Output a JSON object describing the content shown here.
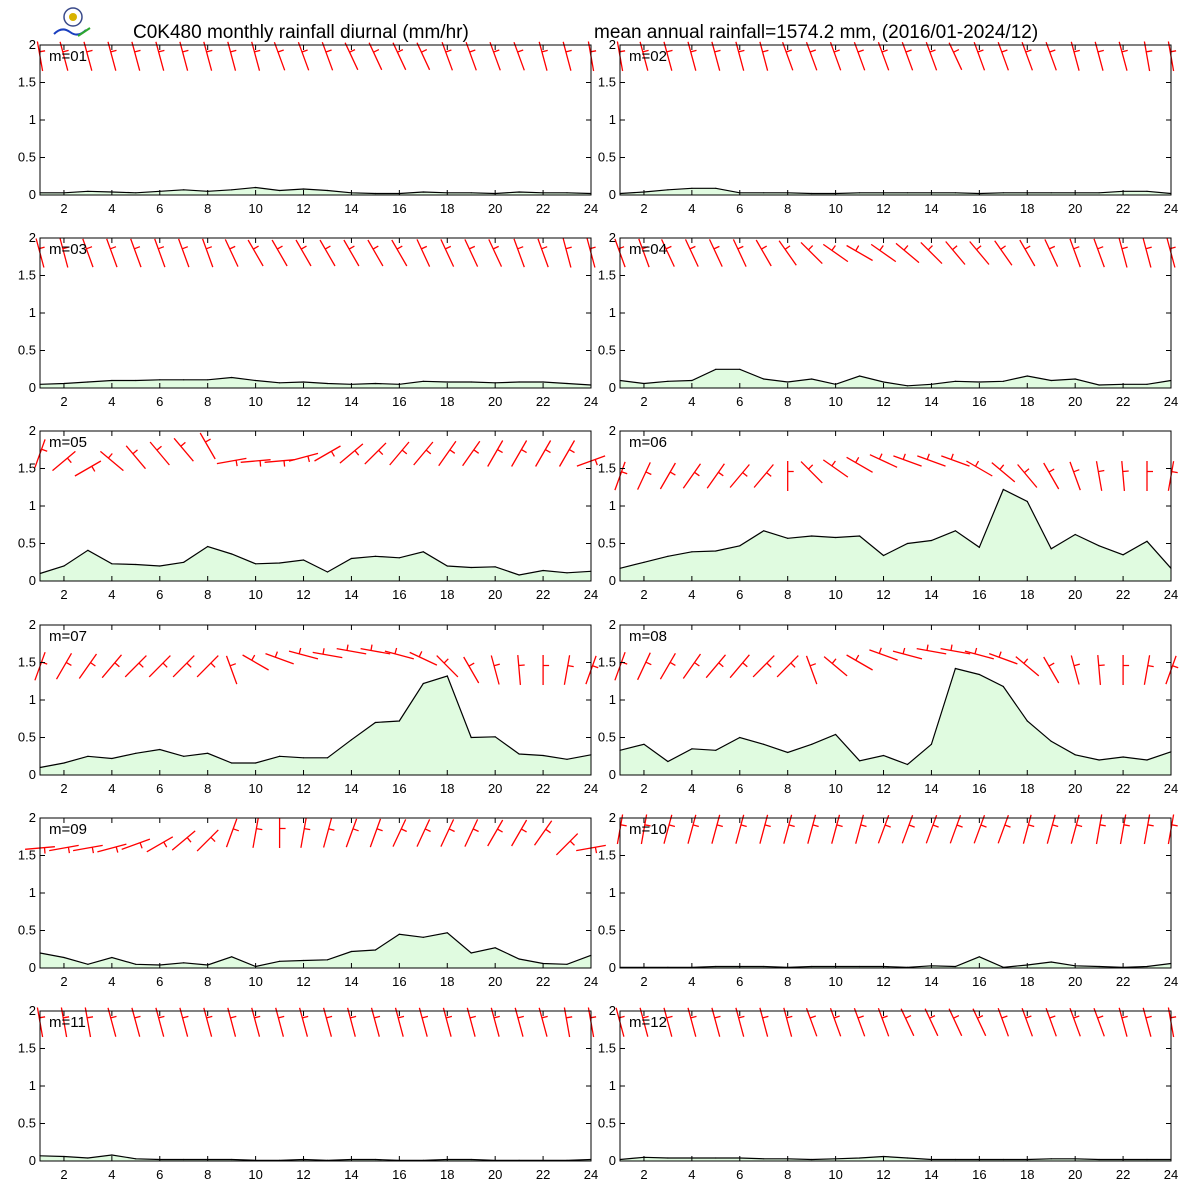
{
  "header": {
    "title_left": "C0K480 monthly rainfall diurnal (mm/hr)",
    "title_right": "mean annual rainfall=1574.2 mm, (2016/01-2024/12)"
  },
  "colors": {
    "area_fill": "#e0fbe0",
    "line": "#000000",
    "barb": "#ff0000"
  },
  "chart_data": {
    "type": "area",
    "xlabel": "",
    "ylabel": "",
    "x": [
      1,
      2,
      3,
      4,
      5,
      6,
      7,
      8,
      9,
      10,
      11,
      12,
      13,
      14,
      15,
      16,
      17,
      18,
      19,
      20,
      21,
      22,
      23,
      24
    ],
    "xticks": [
      2,
      4,
      6,
      8,
      10,
      12,
      14,
      16,
      18,
      20,
      22,
      24
    ],
    "ylim": [
      0,
      2
    ],
    "yticks": [
      0,
      0.5,
      1,
      1.5,
      2
    ],
    "ytick_labels": [
      "0",
      "0.5",
      "1",
      "1.5",
      "2"
    ],
    "grid": false,
    "panels": [
      {
        "label": "m=01",
        "values": [
          0.03,
          0.03,
          0.05,
          0.04,
          0.03,
          0.05,
          0.07,
          0.05,
          0.07,
          0.1,
          0.06,
          0.08,
          0.06,
          0.03,
          0.02,
          0.02,
          0.04,
          0.03,
          0.03,
          0.02,
          0.04,
          0.03,
          0.03,
          0.02
        ],
        "wind_dir": [
          10,
          15,
          15,
          15,
          15,
          15,
          15,
          15,
          15,
          15,
          20,
          20,
          20,
          25,
          25,
          25,
          25,
          20,
          20,
          20,
          20,
          15,
          15,
          10
        ],
        "wind_y": [
          1.85,
          1.85,
          1.85,
          1.85,
          1.85,
          1.85,
          1.85,
          1.85,
          1.85,
          1.85,
          1.85,
          1.85,
          1.85,
          1.85,
          1.85,
          1.85,
          1.85,
          1.85,
          1.85,
          1.85,
          1.85,
          1.85,
          1.85,
          1.85
        ]
      },
      {
        "label": "m=02",
        "values": [
          0.02,
          0.04,
          0.07,
          0.09,
          0.09,
          0.03,
          0.03,
          0.03,
          0.02,
          0.02,
          0.03,
          0.03,
          0.03,
          0.03,
          0.03,
          0.02,
          0.03,
          0.03,
          0.03,
          0.03,
          0.03,
          0.05,
          0.05,
          0.02
        ],
        "wind_dir": [
          10,
          15,
          15,
          15,
          15,
          15,
          15,
          20,
          20,
          20,
          20,
          20,
          20,
          20,
          25,
          20,
          20,
          20,
          20,
          15,
          15,
          15,
          10,
          10
        ],
        "wind_y": [
          1.85,
          1.85,
          1.85,
          1.85,
          1.85,
          1.85,
          1.85,
          1.85,
          1.85,
          1.85,
          1.85,
          1.85,
          1.85,
          1.85,
          1.85,
          1.85,
          1.85,
          1.85,
          1.85,
          1.85,
          1.85,
          1.85,
          1.85,
          1.85
        ]
      },
      {
        "label": "m=03",
        "values": [
          0.05,
          0.06,
          0.08,
          0.1,
          0.1,
          0.11,
          0.11,
          0.11,
          0.14,
          0.1,
          0.07,
          0.08,
          0.06,
          0.05,
          0.06,
          0.05,
          0.09,
          0.08,
          0.08,
          0.07,
          0.08,
          0.08,
          0.06,
          0.04
        ],
        "wind_dir": [
          15,
          15,
          20,
          20,
          20,
          20,
          20,
          20,
          25,
          30,
          30,
          30,
          30,
          30,
          30,
          30,
          25,
          25,
          25,
          25,
          20,
          20,
          15,
          15
        ],
        "wind_y": [
          1.8,
          1.8,
          1.8,
          1.8,
          1.8,
          1.8,
          1.8,
          1.8,
          1.8,
          1.8,
          1.8,
          1.8,
          1.8,
          1.8,
          1.8,
          1.8,
          1.8,
          1.8,
          1.8,
          1.8,
          1.8,
          1.8,
          1.8,
          1.8
        ]
      },
      {
        "label": "m=04",
        "values": [
          0.1,
          0.06,
          0.09,
          0.1,
          0.25,
          0.25,
          0.12,
          0.08,
          0.12,
          0.05,
          0.16,
          0.08,
          0.03,
          0.05,
          0.09,
          0.08,
          0.09,
          0.16,
          0.1,
          0.12,
          0.04,
          0.05,
          0.05,
          0.1
        ],
        "wind_dir": [
          20,
          20,
          25,
          25,
          25,
          25,
          30,
          35,
          45,
          55,
          60,
          55,
          50,
          45,
          40,
          40,
          35,
          30,
          25,
          20,
          20,
          15,
          15,
          15
        ],
        "wind_y": [
          1.8,
          1.8,
          1.8,
          1.8,
          1.8,
          1.8,
          1.8,
          1.8,
          1.8,
          1.8,
          1.8,
          1.8,
          1.8,
          1.8,
          1.8,
          1.8,
          1.8,
          1.8,
          1.8,
          1.8,
          1.8,
          1.8,
          1.8,
          1.8
        ]
      },
      {
        "label": "m=05",
        "values": [
          0.1,
          0.2,
          0.41,
          0.23,
          0.22,
          0.2,
          0.25,
          0.46,
          0.36,
          0.23,
          0.24,
          0.28,
          0.12,
          0.3,
          0.33,
          0.31,
          0.39,
          0.2,
          0.18,
          0.19,
          0.08,
          0.14,
          0.11,
          0.13
        ],
        "wind_dir": [
          -20,
          -50,
          -60,
          50,
          40,
          40,
          40,
          30,
          -80,
          -85,
          -85,
          -75,
          -60,
          -50,
          -45,
          -40,
          -40,
          -35,
          -35,
          -30,
          -30,
          -30,
          -30,
          -70
        ],
        "wind_y": [
          1.7,
          1.6,
          1.5,
          1.6,
          1.65,
          1.7,
          1.75,
          1.8,
          1.6,
          1.6,
          1.6,
          1.65,
          1.7,
          1.7,
          1.7,
          1.7,
          1.7,
          1.7,
          1.7,
          1.7,
          1.7,
          1.7,
          1.7,
          1.6
        ]
      },
      {
        "label": "m=06",
        "values": [
          0.17,
          0.25,
          0.33,
          0.39,
          0.4,
          0.47,
          0.67,
          0.57,
          0.6,
          0.58,
          0.6,
          0.34,
          0.5,
          0.54,
          0.67,
          0.45,
          1.22,
          1.06,
          0.43,
          0.62,
          0.47,
          0.35,
          0.53,
          0.17
        ],
        "wind_dir": [
          -20,
          -25,
          -30,
          -35,
          -35,
          -40,
          -40,
          0,
          45,
          55,
          60,
          65,
          70,
          70,
          70,
          60,
          50,
          40,
          30,
          20,
          10,
          5,
          0,
          -10
        ],
        "wind_y": [
          1.4,
          1.4,
          1.4,
          1.4,
          1.4,
          1.4,
          1.4,
          1.4,
          1.45,
          1.5,
          1.55,
          1.6,
          1.6,
          1.6,
          1.6,
          1.5,
          1.45,
          1.4,
          1.4,
          1.4,
          1.4,
          1.4,
          1.4,
          1.4
        ]
      },
      {
        "label": "m=07",
        "values": [
          0.1,
          0.16,
          0.25,
          0.22,
          0.29,
          0.34,
          0.25,
          0.29,
          0.16,
          0.16,
          0.25,
          0.23,
          0.23,
          0.47,
          0.7,
          0.72,
          1.22,
          1.32,
          0.5,
          0.51,
          0.28,
          0.26,
          0.21,
          0.27
        ],
        "wind_dir": [
          -20,
          -30,
          -35,
          -40,
          -45,
          -45,
          -45,
          -45,
          20,
          60,
          70,
          75,
          80,
          80,
          80,
          75,
          65,
          45,
          30,
          15,
          5,
          0,
          -10,
          -20
        ],
        "wind_y": [
          1.45,
          1.45,
          1.45,
          1.45,
          1.45,
          1.45,
          1.45,
          1.45,
          1.4,
          1.5,
          1.55,
          1.6,
          1.6,
          1.65,
          1.65,
          1.6,
          1.55,
          1.45,
          1.4,
          1.4,
          1.4,
          1.4,
          1.4,
          1.4
        ]
      },
      {
        "label": "m=08",
        "values": [
          0.33,
          0.41,
          0.18,
          0.35,
          0.33,
          0.5,
          0.41,
          0.3,
          0.41,
          0.54,
          0.19,
          0.26,
          0.14,
          0.41,
          1.42,
          1.34,
          1.18,
          0.72,
          0.45,
          0.27,
          0.2,
          0.24,
          0.2,
          0.31
        ],
        "wind_dir": [
          -20,
          -25,
          -30,
          -35,
          -40,
          -40,
          -45,
          -45,
          20,
          50,
          60,
          70,
          75,
          80,
          80,
          75,
          70,
          50,
          30,
          15,
          5,
          0,
          -10,
          -20
        ],
        "wind_y": [
          1.45,
          1.45,
          1.45,
          1.45,
          1.45,
          1.45,
          1.45,
          1.45,
          1.4,
          1.45,
          1.5,
          1.6,
          1.6,
          1.65,
          1.65,
          1.6,
          1.55,
          1.45,
          1.4,
          1.4,
          1.4,
          1.4,
          1.4,
          1.4
        ]
      },
      {
        "label": "m=09",
        "values": [
          0.2,
          0.14,
          0.05,
          0.14,
          0.05,
          0.04,
          0.07,
          0.04,
          0.15,
          0.02,
          0.09,
          0.1,
          0.11,
          0.22,
          0.24,
          0.45,
          0.41,
          0.47,
          0.2,
          0.27,
          0.12,
          0.06,
          0.05,
          0.17
        ],
        "wind_dir": [
          -85,
          -80,
          -80,
          -75,
          -70,
          -60,
          -50,
          -45,
          -20,
          -10,
          0,
          -10,
          -15,
          -20,
          -20,
          -25,
          -25,
          -25,
          -25,
          -30,
          -30,
          -35,
          -45,
          -80
        ],
        "wind_y": [
          1.6,
          1.6,
          1.6,
          1.6,
          1.65,
          1.65,
          1.7,
          1.7,
          1.8,
          1.8,
          1.8,
          1.8,
          1.8,
          1.8,
          1.8,
          1.8,
          1.8,
          1.8,
          1.8,
          1.8,
          1.8,
          1.8,
          1.65,
          1.6
        ]
      },
      {
        "label": "m=10",
        "values": [
          0.01,
          0.01,
          0.01,
          0.01,
          0.02,
          0.02,
          0.02,
          0.01,
          0.02,
          0.02,
          0.02,
          0.02,
          0.01,
          0.03,
          0.02,
          0.15,
          0.01,
          0.04,
          0.08,
          0.03,
          0.02,
          0.01,
          0.02,
          0.06
        ],
        "wind_dir": [
          -10,
          -10,
          -15,
          -15,
          -15,
          -15,
          -15,
          -15,
          -15,
          -15,
          -15,
          -20,
          -20,
          -20,
          -20,
          -20,
          -20,
          -15,
          -15,
          -15,
          -10,
          -10,
          -10,
          -10
        ],
        "wind_y": [
          1.85,
          1.85,
          1.85,
          1.85,
          1.85,
          1.85,
          1.85,
          1.85,
          1.85,
          1.85,
          1.85,
          1.85,
          1.85,
          1.85,
          1.85,
          1.85,
          1.85,
          1.85,
          1.85,
          1.85,
          1.85,
          1.85,
          1.85,
          1.85
        ]
      },
      {
        "label": "m=11",
        "values": [
          0.07,
          0.06,
          0.04,
          0.08,
          0.03,
          0.02,
          0.02,
          0.02,
          0.02,
          0.01,
          0.01,
          0.02,
          0.01,
          0.02,
          0.02,
          0.01,
          0.01,
          0.02,
          0.02,
          0.01,
          0.01,
          0.01,
          0.01,
          0.02
        ],
        "wind_dir": [
          10,
          10,
          10,
          15,
          15,
          15,
          15,
          15,
          15,
          15,
          15,
          15,
          15,
          15,
          15,
          15,
          15,
          15,
          15,
          15,
          15,
          15,
          10,
          10
        ],
        "wind_y": [
          1.85,
          1.85,
          1.85,
          1.85,
          1.85,
          1.85,
          1.85,
          1.85,
          1.85,
          1.85,
          1.85,
          1.85,
          1.85,
          1.85,
          1.85,
          1.85,
          1.85,
          1.85,
          1.85,
          1.85,
          1.85,
          1.85,
          1.85,
          1.85
        ]
      },
      {
        "label": "m=12",
        "values": [
          0.02,
          0.05,
          0.04,
          0.04,
          0.04,
          0.04,
          0.03,
          0.03,
          0.02,
          0.03,
          0.04,
          0.06,
          0.04,
          0.02,
          0.02,
          0.02,
          0.02,
          0.02,
          0.03,
          0.03,
          0.02,
          0.02,
          0.02,
          0.02
        ],
        "wind_dir": [
          15,
          15,
          15,
          15,
          15,
          15,
          15,
          15,
          20,
          20,
          20,
          20,
          25,
          25,
          25,
          25,
          20,
          20,
          20,
          20,
          20,
          15,
          15,
          10
        ],
        "wind_y": [
          1.85,
          1.85,
          1.85,
          1.85,
          1.85,
          1.85,
          1.85,
          1.85,
          1.85,
          1.85,
          1.85,
          1.85,
          1.85,
          1.85,
          1.85,
          1.85,
          1.85,
          1.85,
          1.85,
          1.85,
          1.85,
          1.85,
          1.85,
          1.85
        ]
      }
    ]
  }
}
